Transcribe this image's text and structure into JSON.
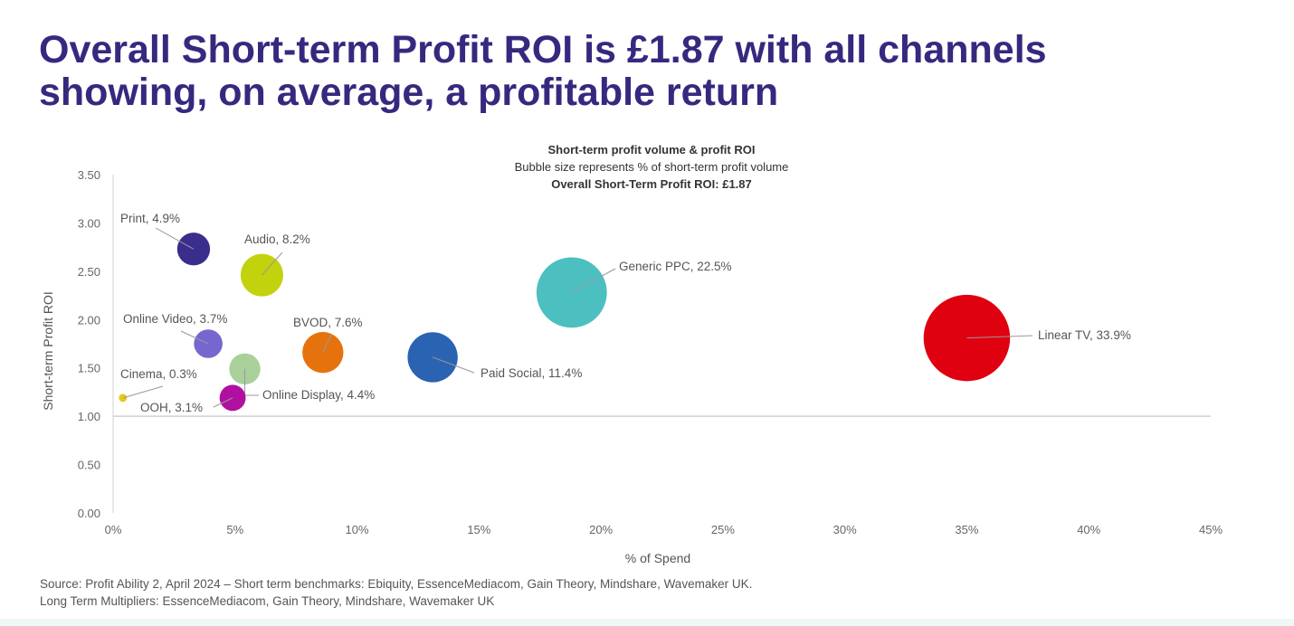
{
  "title": "Overall Short-term Profit ROI is £1.87 with all channels showing, on average, a profitable return",
  "source_lines": [
    "Source: Profit Ability 2, April 2024 – Short term benchmarks: Ebiquity, EssenceMediacom, Gain Theory, Mindshare, Wavemaker UK.",
    "Long Term Multipliers: EssenceMediacom, Gain Theory, Mindshare, Wavemaker UK"
  ],
  "chart_data": {
    "type": "bubble",
    "title": "Short-term profit volume & profit ROI",
    "subtitle": "Bubble size represents % of short-term profit volume",
    "annotation": "Overall Short-Term Profit ROI: £1.87",
    "xlabel": "% of Spend",
    "ylabel": "Short-term Profit ROI",
    "xlim": [
      0,
      45
    ],
    "ylim": [
      0,
      3.5
    ],
    "x_ticks": [
      "0%",
      "5%",
      "10%",
      "15%",
      "20%",
      "25%",
      "30%",
      "35%",
      "40%",
      "45%"
    ],
    "y_ticks": [
      "0.00",
      "0.50",
      "1.00",
      "1.50",
      "2.00",
      "2.50",
      "3.00",
      "3.50"
    ],
    "x_axis_crosses_y": 1.0,
    "grid": false,
    "points": [
      {
        "label": "Print, 4.9%",
        "name": "Print",
        "x": 3.3,
        "y": 2.73,
        "size": 4.9,
        "color": "#3a2e8c"
      },
      {
        "label": "Audio, 8.2%",
        "name": "Audio",
        "x": 6.1,
        "y": 2.46,
        "size": 8.2,
        "color": "#c2d20c"
      },
      {
        "label": "Generic PPC, 22.5%",
        "name": "Generic PPC",
        "x": 18.8,
        "y": 2.28,
        "size": 22.5,
        "color": "#4cbfc1"
      },
      {
        "label": "Linear TV, 33.9%",
        "name": "Linear TV",
        "x": 35.0,
        "y": 1.81,
        "size": 33.9,
        "color": "#df0010"
      },
      {
        "label": "Online Video, 3.7%",
        "name": "Online Video",
        "x": 3.9,
        "y": 1.75,
        "size": 3.7,
        "color": "#7467d0"
      },
      {
        "label": "BVOD, 7.6%",
        "name": "BVOD",
        "x": 8.6,
        "y": 1.66,
        "size": 7.6,
        "color": "#e6720d"
      },
      {
        "label": "Paid Social, 11.4%",
        "name": "Paid Social",
        "x": 13.1,
        "y": 1.61,
        "size": 11.4,
        "color": "#2b63b3"
      },
      {
        "label": "Online Display, 4.4%",
        "name": "Online Display",
        "x": 5.4,
        "y": 1.49,
        "size": 4.4,
        "color": "#a9d09b"
      },
      {
        "label": "Cinema, 0.3%",
        "name": "Cinema",
        "x": 0.4,
        "y": 1.19,
        "size": 0.3,
        "color": "#e6c81e"
      },
      {
        "label": "OOH, 3.1%",
        "name": "OOH",
        "x": 4.9,
        "y": 1.19,
        "size": 3.1,
        "color": "#b0109f"
      }
    ]
  }
}
